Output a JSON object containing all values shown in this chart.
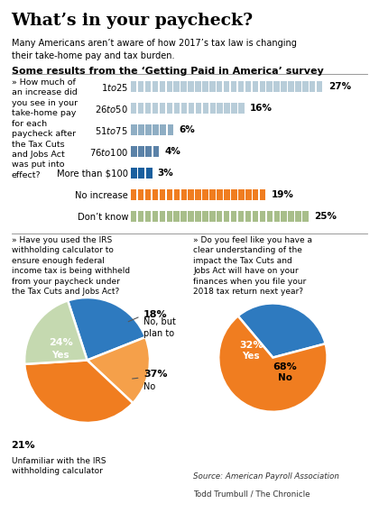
{
  "title": "What’s in your paycheck?",
  "subtitle": "Many Americans aren’t aware of how 2017’s tax law is changing\ntheir take-home pay and tax burden.",
  "section_header": "Some results from the ‘Getting Paid in America’ survey",
  "bar_question": "» How much of\nan increase did\nyou see in your\ntake-home pay\nfor each\npaycheck after\nthe Tax Cuts\nand Jobs Act\nwas put into\neffect?",
  "pie1_question": "» Have you used the IRS\nwithholding calculator to\nensure enough federal\nincome tax is being withheld\nfrom your paycheck under\nthe Tax Cuts and Jobs Act?",
  "pie2_question": "» Do you feel like you have a\nclear understanding of the\nimpact the Tax Cuts and\nJobs Act will have on your\nfinances when you file your\n2018 tax return next year?",
  "bar_labels": [
    "$1 to $25",
    "$26 to $50",
    "$51 to $75",
    "$76 to $100",
    "More than $100",
    "No increase",
    "Don’t know"
  ],
  "bar_values": [
    27,
    16,
    6,
    4,
    3,
    19,
    25
  ],
  "bar_colors": [
    "#b8cdd9",
    "#b8cdd9",
    "#8faec4",
    "#5b82a8",
    "#1a5f9e",
    "#f07d20",
    "#a8be8a"
  ],
  "pie1_values": [
    24,
    18,
    37,
    21
  ],
  "pie1_colors": [
    "#2e7abf",
    "#f5a04a",
    "#f07d20",
    "#c5d9b0"
  ],
  "pie2_values": [
    32,
    68
  ],
  "pie2_colors": [
    "#2e7abf",
    "#f07d20"
  ],
  "source": "Source: American Payroll Association",
  "credit": "Todd Trumbull / The Chronicle",
  "bg_color": "#ffffff"
}
